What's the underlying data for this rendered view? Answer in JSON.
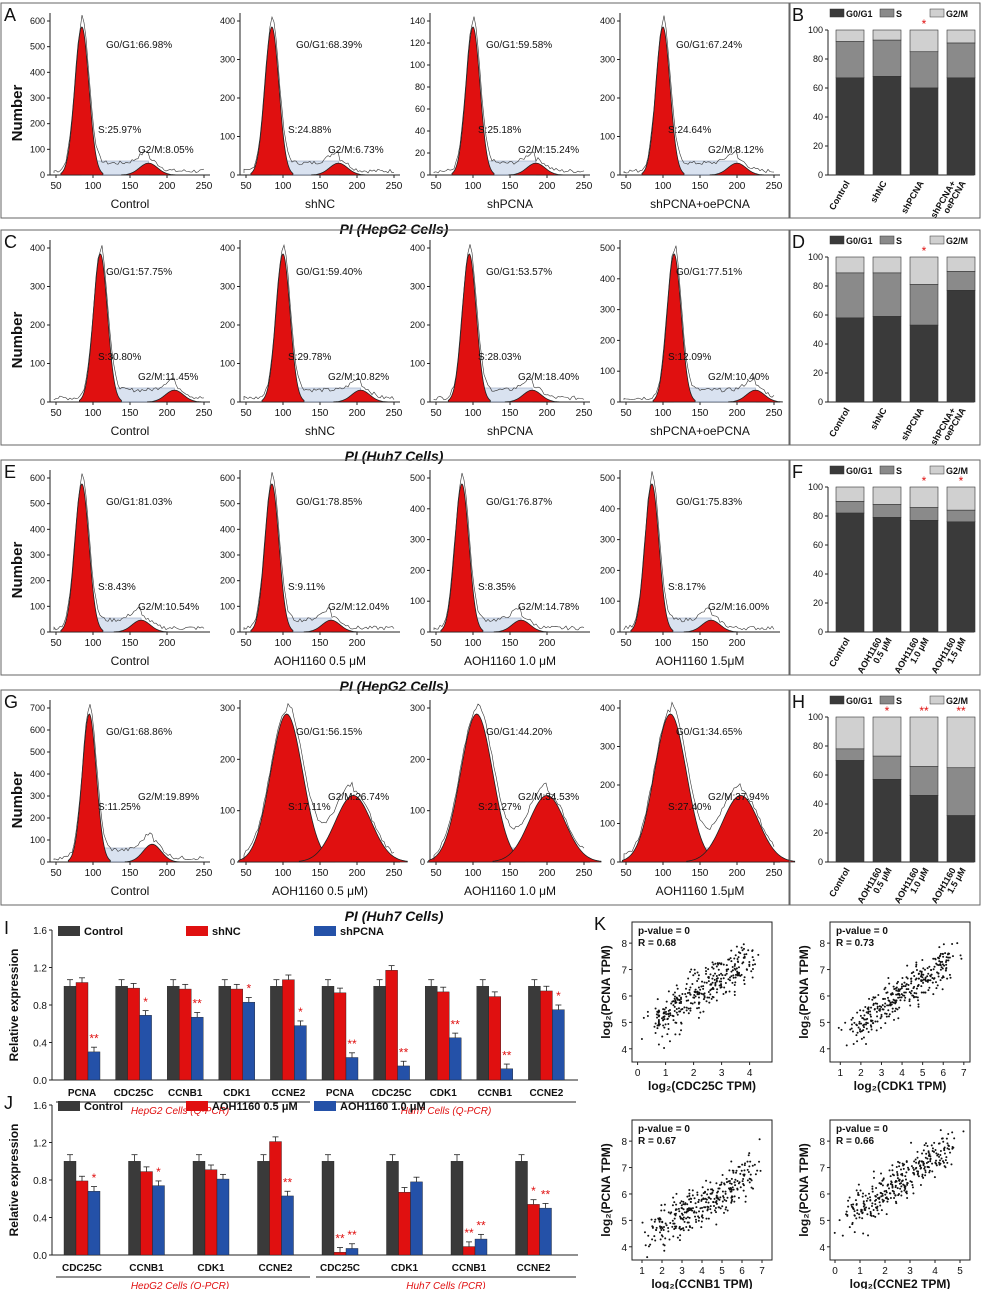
{
  "figure": {
    "section_titles": [
      "PI (HepG2 Cells)",
      "PI (Huh7 Cells)",
      "PI (HepG2 Cells)",
      "PI (Huh7 Cells)"
    ],
    "y_label": "Number",
    "rows": [
      {
        "letter": "A",
        "side_letter": "B",
        "panels": [
          {
            "label": "Control",
            "g0g1": "G0/G1:66.98%",
            "s": "S:25.97%",
            "g2m": "G2/M:8.05%",
            "yticks": [
              0,
              100,
              200,
              300,
              400,
              500,
              600
            ],
            "xticks": [
              50,
              100,
              150,
              200,
              250
            ],
            "g1_peak": 85,
            "g2_peak": 175
          },
          {
            "label": "shNC",
            "g0g1": "G0/G1:68.39%",
            "s": "S:24.88%",
            "g2m": "G2/M:6.73%",
            "yticks": [
              0,
              100,
              200,
              300,
              400
            ],
            "xticks": [
              50,
              100,
              150,
              200,
              250
            ],
            "g1_peak": 85,
            "g2_peak": 175
          },
          {
            "label": "shPCNA",
            "g0g1": "G0/G1:59.58%",
            "s": "S:25.18%",
            "g2m": "G2/M:15.24%",
            "yticks": [
              0,
              20,
              40,
              60,
              80,
              100,
              120,
              140
            ],
            "xticks": [
              50,
              100,
              150,
              200,
              250
            ],
            "g1_peak": 100,
            "g2_peak": 185
          },
          {
            "label": "shPCNA+oePCNA",
            "g0g1": "G0/G1:67.24%",
            "s": "S:24.64%",
            "g2m": "G2/M:8.12%",
            "yticks": [
              0,
              100,
              200,
              300,
              400
            ],
            "xticks": [
              50,
              100,
              150,
              200,
              250
            ],
            "g1_peak": 100,
            "g2_peak": 200
          }
        ],
        "stacked": {
          "categories": [
            "Control",
            "shNC",
            "shPCNA",
            "shPCNA+\noePCNA"
          ],
          "g0g1": [
            67,
            68,
            60,
            67
          ],
          "s": [
            92,
            93,
            85,
            91
          ],
          "sig": [
            "",
            "",
            "*",
            ""
          ],
          "yticks": [
            0,
            20,
            40,
            60,
            80,
            100
          ]
        }
      },
      {
        "letter": "C",
        "side_letter": "D",
        "panels": [
          {
            "label": "Control",
            "g0g1": "G0/G1:57.75%",
            "s": "S:30.80%",
            "g2m": "G2/M:11.45%",
            "yticks": [
              0,
              100,
              200,
              300,
              400
            ],
            "xticks": [
              50,
              100,
              150,
              200,
              250
            ],
            "g1_peak": 110,
            "g2_peak": 210
          },
          {
            "label": "shNC",
            "g0g1": "G0/G1:59.40%",
            "s": "S:29.78%",
            "g2m": "G2/M:10.82%",
            "yticks": [
              0,
              100,
              200,
              300,
              400
            ],
            "xticks": [
              50,
              100,
              150,
              200,
              250
            ],
            "g1_peak": 100,
            "g2_peak": 205
          },
          {
            "label": "shPCNA",
            "g0g1": "G0/G1:53.57%",
            "s": "S:28.03%",
            "g2m": "G2/M:18.40%",
            "yticks": [
              0,
              100,
              200,
              300,
              400
            ],
            "xticks": [
              50,
              100,
              150,
              200,
              250
            ],
            "g1_peak": 95,
            "g2_peak": 180
          },
          {
            "label": "shPCNA+oePCNA",
            "g0g1": "G0/G1:77.51%",
            "s": "S:12.09%",
            "g2m": "G2/M:10.40%",
            "yticks": [
              0,
              100,
              200,
              300,
              400,
              500
            ],
            "xticks": [
              50,
              100,
              150,
              200,
              250
            ],
            "g1_peak": 115,
            "g2_peak": 225
          }
        ],
        "stacked": {
          "categories": [
            "Control",
            "shNC",
            "shPCNA",
            "shPCNA+\noePCNA"
          ],
          "g0g1": [
            58,
            59,
            53,
            77
          ],
          "s": [
            89,
            89,
            81,
            90
          ],
          "sig": [
            "",
            "",
            "*",
            ""
          ],
          "yticks": [
            0,
            20,
            40,
            60,
            80,
            100
          ]
        }
      },
      {
        "letter": "E",
        "side_letter": "F",
        "panels": [
          {
            "label": "Control",
            "g0g1": "G0/G1:81.03%",
            "s": "S:8.43%",
            "g2m": "G2/M:10.54%",
            "yticks": [
              0,
              100,
              200,
              300,
              400,
              500,
              600
            ],
            "xticks": [
              50,
              100,
              150,
              200
            ],
            "g1_peak": 85,
            "g2_peak": 165
          },
          {
            "label": "AOH1160 0.5 μM",
            "g0g1": "G0/G1:78.85%",
            "s": "S:9.11%",
            "g2m": "G2/M:12.04%",
            "yticks": [
              0,
              100,
              200,
              300,
              400,
              500,
              600
            ],
            "xticks": [
              50,
              100,
              150,
              200
            ],
            "g1_peak": 85,
            "g2_peak": 165
          },
          {
            "label": "AOH1160 1.0 μM",
            "g0g1": "G0/G1:76.87%",
            "s": "S:8.35%",
            "g2m": "G2/M:14.78%",
            "yticks": [
              0,
              100,
              200,
              300,
              400,
              500
            ],
            "xticks": [
              50,
              100,
              150,
              200
            ],
            "g1_peak": 85,
            "g2_peak": 165
          },
          {
            "label": "AOH1160 1.5μM",
            "g0g1": "G0/G1:75.83%",
            "s": "S:8.17%",
            "g2m": "G2/M:16.00%",
            "yticks": [
              0,
              100,
              200,
              300,
              400,
              500
            ],
            "xticks": [
              50,
              100,
              150,
              200
            ],
            "g1_peak": 85,
            "g2_peak": 165
          }
        ],
        "stacked": {
          "categories": [
            "Control",
            "AOH1160\n0.5 μM",
            "AOH1160\n1.0 μM",
            "AOH1160\n1.5 μM"
          ],
          "g0g1": [
            82,
            79,
            77,
            76
          ],
          "s": [
            90,
            88,
            86,
            84
          ],
          "sig": [
            "",
            "",
            "*",
            "*"
          ],
          "yticks": [
            0,
            20,
            40,
            60,
            80,
            100
          ]
        }
      },
      {
        "letter": "G",
        "side_letter": "H",
        "panels": [
          {
            "label": "Control",
            "g0g1": "G0/G1:68.86%",
            "s": "S:11.25%",
            "g2m": "G2/M:19.89%",
            "yticks": [
              0,
              100,
              200,
              300,
              400,
              500,
              600,
              700
            ],
            "xticks": [
              50,
              100,
              150,
              200,
              250
            ],
            "g1_peak": 95,
            "g2_peak": 180
          },
          {
            "label": "AOH1160 0.5 μM)",
            "g0g1": "G0/G1:56.15%",
            "s": "S:17.11%",
            "g2m": "G2/M:26.74%",
            "yticks": [
              0,
              100,
              200,
              300
            ],
            "xticks": [
              50,
              100,
              150,
              200,
              250
            ],
            "g1_peak": 105,
            "g2_peak": 195
          },
          {
            "label": "AOH1160 1.0 μM",
            "g0g1": "G0/G1:44.20%",
            "s": "S:21.27%",
            "g2m": "G2/M:34.53%",
            "yticks": [
              0,
              100,
              200,
              300
            ],
            "xticks": [
              50,
              100,
              150,
              200,
              250
            ],
            "g1_peak": 105,
            "g2_peak": 200
          },
          {
            "label": "AOH1160 1.5μM",
            "g0g1": "G0/G1:34.65%",
            "s": "S:27.40%",
            "g2m": "G2/M:37.94%",
            "yticks": [
              0,
              100,
              200,
              300,
              400
            ],
            "xticks": [
              50,
              100,
              150,
              200,
              250
            ],
            "g1_peak": 110,
            "g2_peak": 205
          }
        ],
        "stacked": {
          "categories": [
            "Control",
            "AOH1160\n0.5 μM",
            "AOH1160\n1.0 μM",
            "AOH1160\n1.5 μM"
          ],
          "g0g1": [
            70,
            57,
            46,
            32
          ],
          "s": [
            78,
            73,
            66,
            65
          ],
          "sig": [
            "",
            "*",
            "**",
            "**"
          ],
          "yticks": [
            0,
            20,
            40,
            60,
            80,
            100
          ]
        }
      }
    ],
    "legend_labels": [
      "G0/G1",
      "S",
      "G2/M"
    ]
  },
  "chart_data": [
    {
      "type": "bar",
      "panel": "I",
      "ylabel": "Relative expression",
      "ylim": [
        0,
        1.6
      ],
      "yticks": [
        "0.0",
        "0.4",
        "0.8",
        "1.2",
        "1.6"
      ],
      "series_names": [
        "Control",
        "shNC",
        "shPCNA"
      ],
      "categories": [
        "PCNA",
        "CDC25C",
        "CCNB1",
        "CDK1",
        "CCNE2",
        "PCNA",
        "CDC25C",
        "CDK1",
        "CCNB1",
        "CCNE2"
      ],
      "series": [
        {
          "name": "Control",
          "values": [
            1.0,
            1.0,
            1.0,
            1.0,
            1.0,
            1.0,
            1.0,
            1.0,
            1.0,
            1.0
          ]
        },
        {
          "name": "shNC",
          "values": [
            1.04,
            0.98,
            0.97,
            0.97,
            1.07,
            0.93,
            1.17,
            0.94,
            0.89,
            0.95
          ]
        },
        {
          "name": "shPCNA",
          "values": [
            0.3,
            0.69,
            0.67,
            0.83,
            0.58,
            0.24,
            0.15,
            0.45,
            0.12,
            0.75
          ]
        }
      ],
      "sig": [
        "**",
        "*",
        "**",
        "*",
        "*",
        "**",
        "**",
        "**",
        "**",
        "*"
      ],
      "group_labels": [
        "HepG2 Cells (Q-PCR)",
        "Huh7 Cells (Q-PCR)"
      ]
    },
    {
      "type": "bar",
      "panel": "J",
      "ylabel": "Relative expression",
      "ylim": [
        0,
        1.6
      ],
      "yticks": [
        "0.0",
        "0.4",
        "0.8",
        "1.2",
        "1.6"
      ],
      "series_names": [
        "Control",
        "AOH1160 0.5 μM",
        "AOH1160 1.0 μM"
      ],
      "categories": [
        "CDC25C",
        "CCNB1",
        "CDK1",
        "CCNE2",
        "CDC25C",
        "CDK1",
        "CCNB1",
        "CCNE2"
      ],
      "series": [
        {
          "name": "Control",
          "values": [
            1.0,
            1.0,
            1.0,
            1.0,
            1.0,
            1.0,
            1.0,
            1.0
          ]
        },
        {
          "name": "AOH1160 0.5 μM",
          "values": [
            0.79,
            0.89,
            0.91,
            1.21,
            0.03,
            0.67,
            0.09,
            0.54
          ]
        },
        {
          "name": "AOH1160 1.0 μM",
          "values": [
            0.68,
            0.74,
            0.81,
            0.63,
            0.07,
            0.78,
            0.17,
            0.5
          ]
        }
      ],
      "sig1": [
        "",
        "",
        "",
        "",
        "**",
        "",
        "**",
        "*"
      ],
      "sig2": [
        "*",
        "*",
        "",
        "**",
        "**",
        "",
        "**",
        "**"
      ],
      "group_labels": [
        "HepG2 Cells (Q-PCR)",
        "Huh7 Cells (PCR)"
      ]
    },
    {
      "type": "scatter",
      "panel": "K",
      "correlations": [
        {
          "pvalue": "p-value = 0",
          "r": "R = 0.68",
          "xlabel": "log₂(CDC25C TPM)",
          "ylabel": "log₂(PCNA TPM)",
          "xticks": [
            0,
            1,
            2,
            3,
            4
          ],
          "yticks": [
            4,
            5,
            6,
            7,
            8
          ],
          "xlim": [
            -0.2,
            4.8
          ],
          "ylim": [
            3.5,
            8.8
          ],
          "slope": 0.68,
          "intercept": 4.6
        },
        {
          "pvalue": "p-value = 0",
          "r": "R = 0.73",
          "xlabel": "log₂(CDK1 TPM)",
          "ylabel": "log₂(PCNA TPM)",
          "xticks": [
            1,
            2,
            3,
            4,
            5,
            6,
            7
          ],
          "yticks": [
            4,
            5,
            6,
            7,
            8
          ],
          "xlim": [
            0.5,
            7.3
          ],
          "ylim": [
            3.5,
            8.8
          ],
          "slope": 0.55,
          "intercept": 3.9
        },
        {
          "pvalue": "p-value = 0",
          "r": "R = 0.67",
          "xlabel": "log₂(CCNB1 TPM)",
          "ylabel": "log₂(PCNA TPM)",
          "xticks": [
            1,
            2,
            3,
            4,
            5,
            6,
            7
          ],
          "yticks": [
            4,
            5,
            6,
            7,
            8
          ],
          "xlim": [
            0.5,
            7.5
          ],
          "ylim": [
            3.5,
            8.8
          ],
          "slope": 0.45,
          "intercept": 3.8
        },
        {
          "pvalue": "p-value = 0",
          "r": "R = 0.66",
          "xlabel": "log₂(CCNE2 TPM)",
          "ylabel": "log₂(PCNA TPM)",
          "xticks": [
            0,
            1,
            2,
            3,
            4,
            5
          ],
          "yticks": [
            4,
            5,
            6,
            7,
            8
          ],
          "xlim": [
            -0.2,
            5.4
          ],
          "ylim": [
            3.5,
            8.8
          ],
          "slope": 0.65,
          "intercept": 4.8
        }
      ]
    }
  ],
  "colors": {
    "red": "#e01010",
    "blue": "#2451a8",
    "dark": "#3a3a3a",
    "mid": "#8a8a8a",
    "light": "#d0d0d0",
    "sig": "#e01010"
  }
}
